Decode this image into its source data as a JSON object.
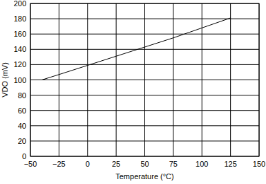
{
  "chart_data": {
    "type": "line",
    "x_label": "Temperature (°C)",
    "y_label": "VDO (mV)",
    "x": [
      -40,
      -25,
      0,
      25,
      50,
      75,
      100,
      125
    ],
    "values": [
      100,
      107,
      119,
      131,
      143,
      155,
      168,
      181
    ],
    "color": "#000000",
    "xlim": [
      -50,
      150
    ],
    "xticks": [
      -50,
      -25,
      0,
      25,
      50,
      75,
      100,
      125,
      150
    ],
    "ylim": [
      0,
      200
    ],
    "yticks": [
      0,
      20,
      40,
      60,
      80,
      100,
      120,
      140,
      160,
      180,
      200
    ],
    "grid": true
  }
}
